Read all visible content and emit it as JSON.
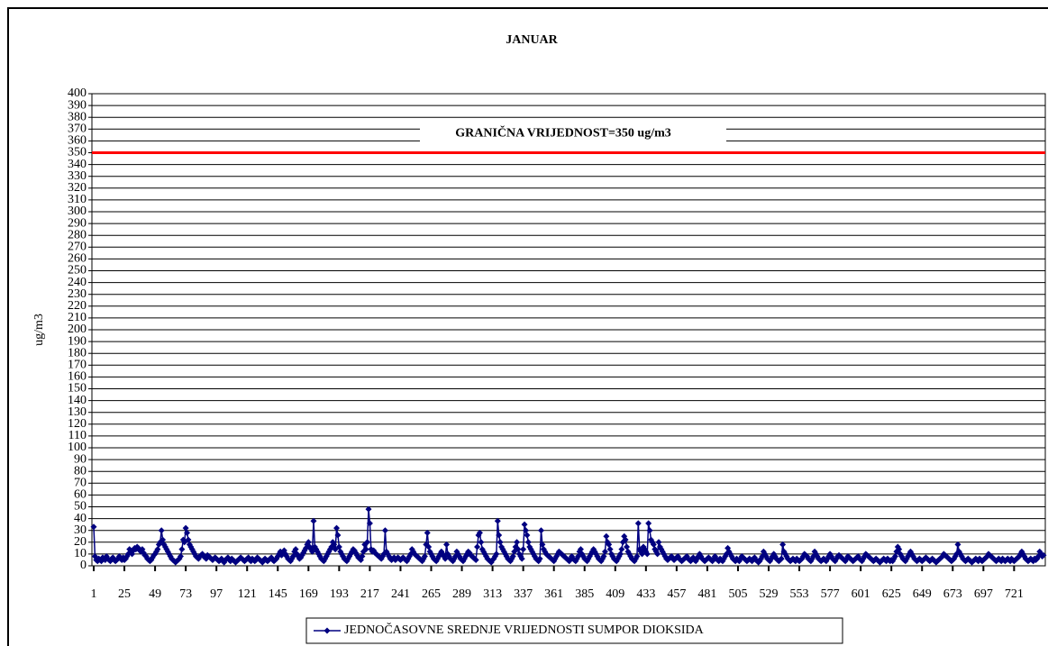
{
  "chart_data": {
    "type": "line",
    "title": "JANUAR",
    "ylabel": "ug/m3",
    "ylim": [
      0,
      400
    ],
    "yticks": [
      0,
      10,
      20,
      30,
      40,
      50,
      60,
      70,
      80,
      90,
      100,
      110,
      120,
      130,
      140,
      150,
      160,
      170,
      180,
      190,
      200,
      210,
      220,
      230,
      240,
      250,
      260,
      270,
      280,
      290,
      300,
      310,
      320,
      330,
      340,
      350,
      360,
      370,
      380,
      390,
      400
    ],
    "xlim": [
      1,
      744
    ],
    "xticks": [
      1,
      25,
      49,
      73,
      97,
      121,
      145,
      169,
      193,
      217,
      241,
      265,
      289,
      313,
      337,
      361,
      385,
      409,
      433,
      457,
      481,
      505,
      529,
      553,
      577,
      601,
      625,
      649,
      673,
      697,
      721
    ],
    "grid": true,
    "legend": "bottom",
    "limit": {
      "value": 350,
      "label": "GRANIČNA VRIJEDNOST=350 ug/m3",
      "color": "#ff0000"
    },
    "x": [
      1,
      2,
      3,
      4,
      5,
      6,
      7,
      8,
      9,
      10,
      11,
      12,
      13,
      14,
      15,
      16,
      17,
      18,
      19,
      20,
      21,
      22,
      23,
      24,
      25,
      26,
      27,
      28,
      29,
      30,
      31,
      32,
      33,
      34,
      35,
      36,
      37,
      38,
      39,
      40,
      41,
      42,
      43,
      44,
      45,
      46,
      47,
      48,
      49,
      50,
      51,
      52,
      53,
      54,
      55,
      56,
      57,
      58,
      59,
      60,
      61,
      62,
      63,
      64,
      65,
      66,
      67,
      68,
      69,
      70,
      71,
      72,
      73,
      74,
      75,
      76,
      77,
      78,
      79,
      80,
      81,
      82,
      83,
      84,
      85,
      86,
      87,
      88,
      89,
      90,
      91,
      92,
      93,
      94,
      95,
      96,
      97,
      98,
      99,
      100,
      101,
      102,
      103,
      104,
      105,
      106,
      107,
      108,
      109,
      110,
      111,
      112,
      113,
      114,
      115,
      116,
      117,
      118,
      119,
      120,
      121,
      122,
      123,
      124,
      125,
      126,
      127,
      128,
      129,
      130,
      131,
      132,
      133,
      134,
      135,
      136,
      137,
      138,
      139,
      140,
      141,
      142,
      143,
      144,
      145,
      146,
      147,
      148,
      149,
      150,
      151,
      152,
      153,
      154,
      155,
      156,
      157,
      158,
      159,
      160,
      161,
      162,
      163,
      164,
      165,
      166,
      167,
      168,
      169,
      170,
      171,
      172,
      173,
      174,
      175,
      176,
      177,
      178,
      179,
      180,
      181,
      182,
      183,
      184,
      185,
      186,
      187,
      188,
      189,
      190,
      191,
      192,
      193,
      194,
      195,
      196,
      197,
      198,
      199,
      200,
      201,
      202,
      203,
      204,
      205,
      206,
      207,
      208,
      209,
      210,
      211,
      212,
      213,
      214,
      215,
      216,
      217,
      218,
      219,
      220,
      221,
      222,
      223,
      224,
      225,
      226,
      227,
      228,
      229,
      230,
      231,
      232,
      233,
      234,
      235,
      236,
      237,
      238,
      239,
      240,
      241,
      242,
      243,
      244,
      245,
      246,
      247,
      248,
      249,
      250,
      251,
      252,
      253,
      254,
      255,
      256,
      257,
      258,
      259,
      260,
      261,
      262,
      263,
      264,
      265,
      266,
      267,
      268,
      269,
      270,
      271,
      272,
      273,
      274,
      275,
      276,
      277,
      278,
      279,
      280,
      281,
      282,
      283,
      284,
      285,
      286,
      287,
      288,
      289,
      290,
      291,
      292,
      293,
      294,
      295,
      296,
      297,
      298,
      299,
      300,
      301,
      302,
      303,
      304,
      305,
      306,
      307,
      308,
      309,
      310,
      311,
      312,
      313,
      314,
      315,
      316,
      317,
      318,
      319,
      320,
      321,
      322,
      323,
      324,
      325,
      326,
      327,
      328,
      329,
      330,
      331,
      332,
      333,
      334,
      335,
      336,
      337,
      338,
      339,
      340,
      341,
      342,
      343,
      344,
      345,
      346,
      347,
      348,
      349,
      350,
      351,
      352,
      353,
      354,
      355,
      356,
      357,
      358,
      359,
      360,
      361,
      362,
      363,
      364,
      365,
      366,
      367,
      368,
      369,
      370,
      371,
      372,
      373,
      374,
      375,
      376,
      377,
      378,
      379,
      380,
      381,
      382,
      383,
      384,
      385,
      386,
      387,
      388,
      389,
      390,
      391,
      392,
      393,
      394,
      395,
      396,
      397,
      398,
      399,
      400,
      401,
      402,
      403,
      404,
      405,
      406,
      407,
      408,
      409,
      410,
      411,
      412,
      413,
      414,
      415,
      416,
      417,
      418,
      419,
      420,
      421,
      422,
      423,
      424,
      425,
      426,
      427,
      428,
      429,
      430,
      431,
      432,
      433,
      434,
      435,
      436,
      437,
      438,
      439,
      440,
      441,
      442,
      443,
      444,
      445,
      446,
      447,
      448,
      449,
      450,
      451,
      452,
      453,
      454,
      455,
      456,
      457,
      458,
      459,
      460,
      461,
      462,
      463,
      464,
      465,
      466,
      467,
      468,
      469,
      470,
      471,
      472,
      473,
      474,
      475,
      476,
      477,
      478,
      479,
      480,
      481,
      482,
      483,
      484,
      485,
      486,
      487,
      488,
      489,
      490,
      491,
      492,
      493,
      494,
      495,
      496,
      497,
      498,
      499,
      500,
      501,
      502,
      503,
      504,
      505,
      506,
      507,
      508,
      509,
      510,
      511,
      512,
      513,
      514,
      515,
      516,
      517,
      518,
      519,
      520,
      521,
      522,
      523,
      524,
      525,
      526,
      527,
      528,
      529,
      530,
      531,
      532,
      533,
      534,
      535,
      536,
      537,
      538,
      539,
      540,
      541,
      542,
      543,
      544,
      545,
      546,
      547,
      548,
      549,
      550,
      551,
      552,
      553,
      554,
      555,
      556,
      557,
      558,
      559,
      560,
      561,
      562,
      563,
      564,
      565,
      566,
      567,
      568,
      569,
      570,
      571,
      572,
      573,
      574,
      575,
      576,
      577,
      578,
      579,
      580,
      581,
      582,
      583,
      584,
      585,
      586,
      587,
      588,
      589,
      590,
      591,
      592,
      593,
      594,
      595,
      596,
      597,
      598,
      599,
      600,
      601,
      602,
      603,
      604,
      605,
      606,
      607,
      608,
      609,
      610,
      611,
      612,
      613,
      614,
      615,
      616,
      617,
      618,
      619,
      620,
      621,
      622,
      623,
      624,
      625,
      626,
      627,
      628,
      629,
      630,
      631,
      632,
      633,
      634,
      635,
      636,
      637,
      638,
      639,
      640,
      641,
      642,
      643,
      644,
      645,
      646,
      647,
      648,
      649,
      650,
      651,
      652,
      653,
      654,
      655,
      656,
      657,
      658,
      659,
      660,
      661,
      662,
      663,
      664,
      665,
      666,
      667,
      668,
      669,
      670,
      671,
      672,
      673,
      674,
      675,
      676,
      677,
      678,
      679,
      680,
      681,
      682,
      683,
      684,
      685,
      686,
      687,
      688,
      689,
      690,
      691,
      692,
      693,
      694,
      695,
      696,
      697,
      698,
      699,
      700,
      701,
      702,
      703,
      704,
      705,
      706,
      707,
      708,
      709,
      710,
      711,
      712,
      713,
      714,
      715,
      716,
      717,
      718,
      719,
      720,
      721,
      722,
      723,
      724,
      725,
      726,
      727,
      728,
      729,
      730,
      731,
      732,
      733,
      734,
      735,
      736,
      737,
      738,
      739,
      740,
      741,
      742,
      743,
      744
    ],
    "series": [
      {
        "name": "JEDNOČASOVNE SREDNJE VRIJEDNOSTI SUMPOR DIOKSIDA",
        "color": "#000080",
        "values": [
          33,
          8,
          5,
          4,
          6,
          5,
          4,
          7,
          6,
          5,
          8,
          6,
          5,
          4,
          6,
          7,
          5,
          4,
          5,
          6,
          8,
          6,
          5,
          7,
          5,
          6,
          8,
          10,
          14,
          12,
          10,
          13,
          15,
          14,
          16,
          15,
          13,
          12,
          14,
          11,
          9,
          8,
          6,
          5,
          4,
          5,
          7,
          9,
          10,
          12,
          14,
          18,
          20,
          30,
          22,
          18,
          16,
          14,
          12,
          10,
          8,
          6,
          5,
          4,
          3,
          4,
          5,
          6,
          8,
          14,
          22,
          20,
          32,
          28,
          22,
          18,
          16,
          14,
          12,
          10,
          8,
          7,
          6,
          8,
          9,
          10,
          8,
          7,
          6,
          9,
          8,
          7,
          6,
          5,
          6,
          7,
          6,
          5,
          4,
          5,
          6,
          4,
          3,
          5,
          6,
          7,
          5,
          4,
          6,
          5,
          4,
          3,
          4,
          5,
          6,
          7,
          6,
          5,
          4,
          5,
          6,
          7,
          5,
          4,
          6,
          5,
          4,
          5,
          7,
          6,
          5,
          4,
          3,
          5,
          6,
          5,
          4,
          5,
          6,
          7,
          5,
          4,
          5,
          6,
          8,
          10,
          12,
          9,
          11,
          13,
          10,
          8,
          6,
          5,
          4,
          6,
          8,
          12,
          14,
          10,
          8,
          6,
          7,
          9,
          11,
          13,
          15,
          18,
          20,
          16,
          14,
          12,
          38,
          16,
          14,
          12,
          10,
          8,
          6,
          5,
          4,
          6,
          8,
          10,
          12,
          14,
          16,
          20,
          18,
          14,
          32,
          26,
          16,
          12,
          10,
          8,
          6,
          5,
          4,
          6,
          8,
          10,
          12,
          14,
          13,
          11,
          9,
          7,
          6,
          5,
          8,
          12,
          18,
          14,
          20,
          48,
          36,
          14,
          12,
          13,
          11,
          10,
          9,
          8,
          7,
          6,
          8,
          10,
          30,
          12,
          10,
          8,
          6,
          5,
          6,
          7,
          5,
          6,
          7,
          6,
          5,
          6,
          7,
          6,
          5,
          4,
          6,
          8,
          10,
          14,
          12,
          10,
          9,
          8,
          7,
          6,
          5,
          4,
          6,
          8,
          18,
          28,
          16,
          12,
          10,
          8,
          6,
          5,
          4,
          6,
          8,
          10,
          12,
          10,
          8,
          6,
          18,
          10,
          8,
          6,
          5,
          4,
          6,
          8,
          12,
          10,
          8,
          6,
          5,
          4,
          6,
          8,
          10,
          12,
          11,
          9,
          8,
          7,
          6,
          5,
          16,
          26,
          28,
          20,
          14,
          12,
          10,
          8,
          6,
          5,
          4,
          3,
          5,
          6,
          8,
          10,
          38,
          26,
          20,
          16,
          14,
          12,
          10,
          8,
          6,
          5,
          4,
          6,
          8,
          12,
          16,
          20,
          14,
          10,
          8,
          6,
          14,
          35,
          30,
          26,
          20,
          16,
          14,
          12,
          10,
          8,
          6,
          5,
          4,
          6,
          30,
          18,
          14,
          12,
          10,
          9,
          8,
          7,
          6,
          5,
          4,
          6,
          8,
          10,
          12,
          11,
          10,
          9,
          8,
          7,
          6,
          5,
          4,
          6,
          8,
          6,
          5,
          4,
          6,
          8,
          12,
          14,
          10,
          8,
          6,
          5,
          4,
          6,
          8,
          10,
          12,
          14,
          12,
          10,
          8,
          6,
          5,
          4,
          6,
          8,
          12,
          25,
          20,
          18,
          14,
          10,
          8,
          6,
          5,
          4,
          6,
          8,
          10,
          14,
          20,
          25,
          22,
          16,
          12,
          10,
          8,
          6,
          5,
          4,
          6,
          8,
          36,
          14,
          12,
          10,
          16,
          14,
          12,
          10,
          36,
          30,
          22,
          20,
          18,
          14,
          12,
          10,
          20,
          16,
          14,
          12,
          10,
          8,
          6,
          5,
          6,
          7,
          8,
          6,
          5,
          6,
          7,
          8,
          6,
          5,
          4,
          5,
          6,
          7,
          8,
          6,
          5,
          4,
          6,
          7,
          5,
          4,
          6,
          8,
          10,
          8,
          6,
          5,
          4,
          5,
          6,
          7,
          6,
          5,
          4,
          6,
          8,
          6,
          5,
          4,
          6,
          5,
          4,
          6,
          8,
          10,
          15,
          12,
          10,
          8,
          6,
          5,
          4,
          6,
          5,
          4,
          6,
          8,
          7,
          6,
          5,
          4,
          5,
          6,
          5,
          4,
          6,
          7,
          5,
          4,
          3,
          4,
          6,
          8,
          12,
          10,
          8,
          6,
          5,
          4,
          6,
          8,
          10,
          8,
          6,
          5,
          4,
          5,
          6,
          18,
          12,
          10,
          8,
          6,
          5,
          4,
          5,
          6,
          5,
          4,
          6,
          5,
          4,
          5,
          6,
          8,
          10,
          9,
          8,
          6,
          5,
          4,
          6,
          8,
          12,
          10,
          8,
          6,
          5,
          4,
          5,
          6,
          5,
          4,
          6,
          8,
          10,
          8,
          6,
          5,
          4,
          6,
          8,
          9,
          8,
          7,
          6,
          5,
          4,
          6,
          8,
          7,
          6,
          5,
          4,
          5,
          6,
          7,
          8,
          6,
          5,
          4,
          6,
          8,
          10,
          9,
          8,
          7,
          6,
          5,
          4,
          5,
          6,
          5,
          4,
          3,
          4,
          5,
          6,
          5,
          4,
          6,
          5,
          4,
          5,
          4,
          6,
          8,
          12,
          16,
          14,
          10,
          8,
          6,
          5,
          4,
          6,
          8,
          10,
          12,
          10,
          8,
          6,
          5,
          4,
          5,
          6,
          5,
          4,
          5,
          6,
          7,
          6,
          5,
          4,
          5,
          6,
          5,
          4,
          3,
          4,
          5,
          6,
          7,
          8,
          10,
          9,
          8,
          7,
          6,
          5,
          4,
          5,
          6,
          8,
          10,
          18,
          12,
          10,
          8,
          6,
          5,
          4,
          5,
          6,
          5,
          4,
          3,
          4,
          5,
          6,
          5,
          4,
          6,
          5,
          4,
          5,
          6,
          7,
          8,
          10,
          9,
          8,
          7,
          6,
          5,
          4,
          5,
          6,
          5,
          4,
          6,
          5,
          4,
          5,
          6,
          5,
          4,
          6,
          5,
          4,
          5,
          6,
          7,
          8,
          10,
          12,
          10,
          8,
          6,
          5,
          4,
          5,
          6,
          5,
          4,
          6,
          5,
          6,
          8,
          12,
          10,
          8,
          9
        ]
      }
    ]
  }
}
